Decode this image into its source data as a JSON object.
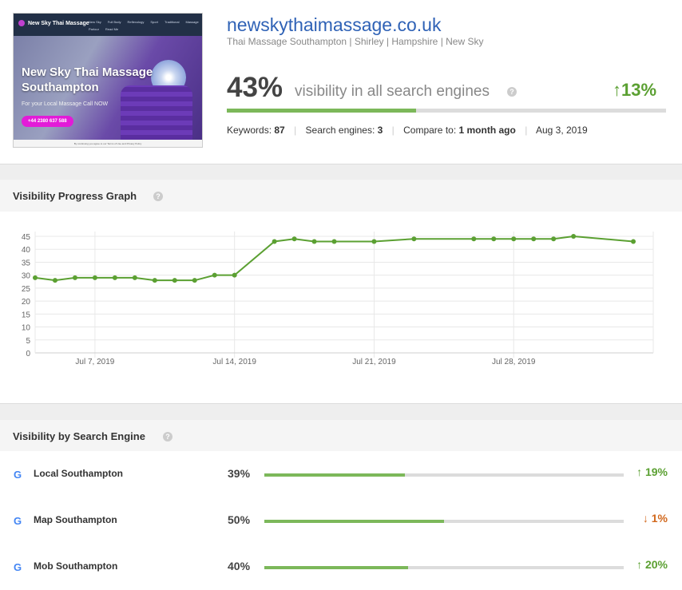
{
  "site": {
    "domain": "newskythaimassage.co.uk",
    "tagline": "Thai Massage Southampton | Shirley | Hampshire | New Sky"
  },
  "thumbnail": {
    "logo": "New Sky Thai Massage",
    "menu": [
      "New Sky",
      "Full Body",
      "Reflexology",
      "Sport",
      "Traditional",
      "Massage Parlour",
      "Read Me"
    ],
    "title": "New Sky Thai Massage Southampton",
    "subtitle": "For your Local Massage Call NOW",
    "phone_button": "+44 2380 637 588",
    "footer": "By continuing you agree to our Terms of Use and Privacy Policy"
  },
  "visibility": {
    "percent": "43%",
    "value": 43,
    "label": "visibility in all search engines",
    "delta": "13%",
    "delta_arrow": "↑"
  },
  "meta": {
    "keywords_label": "Keywords:",
    "keywords_value": "87",
    "engines_label": "Search engines:",
    "engines_value": "3",
    "compare_label": "Compare to:",
    "compare_value": "1 month ago",
    "date": "Aug 3, 2019"
  },
  "sections": {
    "progress_title": "Visibility Progress Graph",
    "engines_title": "Visibility by Search Engine"
  },
  "chart_data": {
    "type": "line",
    "y_ticks": [
      0,
      5,
      10,
      15,
      20,
      25,
      30,
      35,
      40,
      45
    ],
    "ylim": [
      0,
      45
    ],
    "x_tick_labels": [
      "Jul 7, 2019",
      "Jul 14, 2019",
      "Jul 21, 2019",
      "Jul 28, 2019"
    ],
    "x_tick_days": [
      7,
      14,
      21,
      28
    ],
    "xlim": [
      4,
      35
    ],
    "grid": true,
    "color": "#5ba032",
    "series": [
      {
        "x": [
          4,
          5,
          6,
          7,
          8,
          9,
          10,
          11,
          12,
          13,
          14,
          16,
          17,
          18,
          19,
          21,
          23,
          26,
          27,
          28,
          29,
          30,
          31,
          34
        ],
        "values": [
          29,
          28,
          29,
          29,
          29,
          29,
          28,
          28,
          28,
          30,
          30,
          43,
          44,
          43,
          43,
          43,
          44,
          44,
          44,
          44,
          44,
          44,
          45,
          43
        ]
      }
    ]
  },
  "engines": [
    {
      "name": "Local Southampton",
      "percent": "39%",
      "value": 39,
      "delta": "19%",
      "arrow": "↑",
      "dir": "up"
    },
    {
      "name": "Map Southampton",
      "percent": "50%",
      "value": 50,
      "delta": "1%",
      "arrow": "↓",
      "dir": "down"
    },
    {
      "name": "Mob Southampton",
      "percent": "40%",
      "value": 40,
      "delta": "20%",
      "arrow": "↑",
      "dir": "up"
    }
  ],
  "icons": {
    "help": "help-icon",
    "google": "google-icon"
  }
}
